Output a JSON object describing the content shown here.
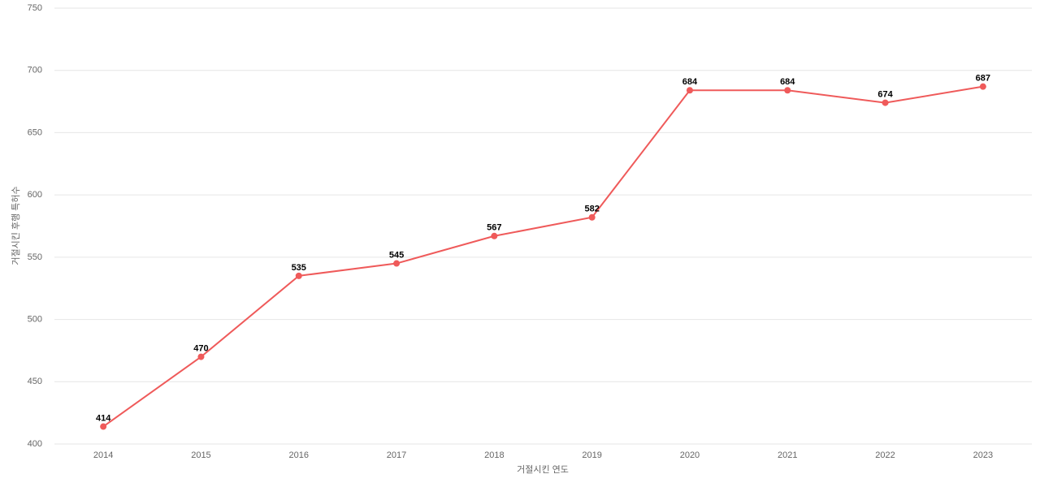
{
  "chart_data": {
    "type": "line",
    "x_label": "거절시킨 연도",
    "y_label": "거절시킨 후행 특허수",
    "categories": [
      "2014",
      "2015",
      "2016",
      "2017",
      "2018",
      "2019",
      "2020",
      "2021",
      "2022",
      "2023"
    ],
    "series": [
      {
        "name": "거절시킨 후행 특허수",
        "color": "#ef5a5a",
        "values": [
          414,
          470,
          535,
          545,
          567,
          582,
          684,
          684,
          674,
          687
        ]
      }
    ],
    "ylim": [
      400,
      750
    ],
    "yticks": [
      400,
      450,
      500,
      550,
      600,
      650,
      700,
      750
    ],
    "grid": true,
    "data_labels": true
  }
}
